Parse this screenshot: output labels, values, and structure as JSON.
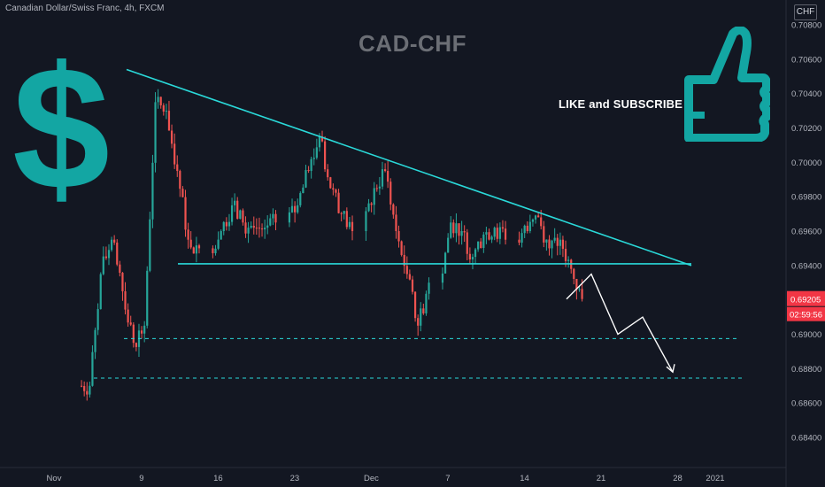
{
  "header": {
    "symbol_info": "Canadian Dollar/Swiss Franc, 4h, FXCM",
    "currency_badge": "CHF"
  },
  "overlay": {
    "title": "CAD-CHF",
    "like_text": "LIKE and SUBSCRIBE",
    "dollar_glyph": "$",
    "dollar_icon": "dollar-sign-icon",
    "thumb_icon": "thumbs-up-icon",
    "accent_color": "#13a6a3",
    "line_color": "#2ad9d9"
  },
  "price_tags": {
    "last_price": "0.69205",
    "countdown": "02:59:56",
    "tag_color": "#f23645"
  },
  "chart_data": {
    "type": "candlestick",
    "symbol": "CAD-CHF",
    "timeframe": "4h",
    "x_tick_labels": [
      "Nov",
      "9",
      "16",
      "23",
      "Dec",
      "7",
      "14",
      "21",
      "28",
      "2021"
    ],
    "y_tick_labels": [
      "0.70800",
      "0.70600",
      "0.70400",
      "0.70200",
      "0.70000",
      "0.69800",
      "0.69600",
      "0.69400",
      "0.69000",
      "0.68800",
      "0.68600",
      "0.68400"
    ],
    "ylim": [
      0.684,
      0.709
    ],
    "up_color": "#26a69a",
    "down_color": "#ef5350",
    "series": [
      {
        "x": "Nov 4",
        "close": 0.687
      },
      {
        "x": "Nov 5",
        "close": 0.6935
      },
      {
        "x": "Nov 6",
        "close": 0.6955
      },
      {
        "x": "Nov 7",
        "close": 0.6925
      },
      {
        "x": "Nov 8",
        "close": 0.6895
      },
      {
        "x": "Nov 9",
        "close": 0.6905
      },
      {
        "x": "Nov 10",
        "close": 0.7035
      },
      {
        "x": "Nov 11",
        "close": 0.703
      },
      {
        "x": "Nov 12",
        "close": 0.6995
      },
      {
        "x": "Nov 13",
        "close": 0.6955
      },
      {
        "x": "Nov 14",
        "close": 0.695
      },
      {
        "x": "Nov 16",
        "close": 0.696
      },
      {
        "x": "Nov 17",
        "close": 0.6975
      },
      {
        "x": "Nov 18",
        "close": 0.6965
      },
      {
        "x": "Nov 19",
        "close": 0.6962
      },
      {
        "x": "Nov 20",
        "close": 0.6962
      },
      {
        "x": "Nov 21",
        "close": 0.6965
      },
      {
        "x": "Nov 23",
        "close": 0.6975
      },
      {
        "x": "Nov 24",
        "close": 0.6995
      },
      {
        "x": "Nov 25",
        "close": 0.7015
      },
      {
        "x": "Nov 26",
        "close": 0.6985
      },
      {
        "x": "Nov 27",
        "close": 0.697
      },
      {
        "x": "Nov 28",
        "close": 0.696
      },
      {
        "x": "Nov 30",
        "close": 0.6985
      },
      {
        "x": "Dec 1",
        "close": 0.6995
      },
      {
        "x": "Dec 2",
        "close": 0.696
      },
      {
        "x": "Dec 3",
        "close": 0.6935
      },
      {
        "x": "Dec 4",
        "close": 0.6905
      },
      {
        "x": "Dec 5",
        "close": 0.693
      },
      {
        "x": "Dec 7",
        "close": 0.6965
      },
      {
        "x": "Dec 8",
        "close": 0.696
      },
      {
        "x": "Dec 9",
        "close": 0.6945
      },
      {
        "x": "Dec 10",
        "close": 0.6958
      },
      {
        "x": "Dec 11",
        "close": 0.6962
      },
      {
        "x": "Dec 12",
        "close": 0.6955
      },
      {
        "x": "Dec 14",
        "close": 0.696
      },
      {
        "x": "Dec 15",
        "close": 0.6968
      },
      {
        "x": "Dec 16",
        "close": 0.695
      },
      {
        "x": "Dec 17",
        "close": 0.6955
      },
      {
        "x": "Dec 18",
        "close": 0.6938
      },
      {
        "x": "Dec 19",
        "close": 0.69205
      }
    ],
    "annotations": {
      "descending_trendline": [
        {
          "x": "Nov 8",
          "y": 0.7054
        },
        {
          "x": "Dec 30",
          "y": 0.694
        }
      ],
      "support_line": [
        {
          "x": "Nov 11",
          "y": 0.6941
        },
        {
          "x": "Dec 30",
          "y": 0.6941
        }
      ],
      "dashed_levels": [
        0.68975,
        0.68745
      ],
      "projected_path": [
        {
          "x": "Dec 19",
          "y": 0.69205
        },
        {
          "x": "Dec 20",
          "y": 0.6935
        },
        {
          "x": "Dec 23",
          "y": 0.69
        },
        {
          "x": "Dec 25",
          "y": 0.691
        },
        {
          "x": "Dec 28",
          "y": 0.6878
        }
      ]
    }
  }
}
